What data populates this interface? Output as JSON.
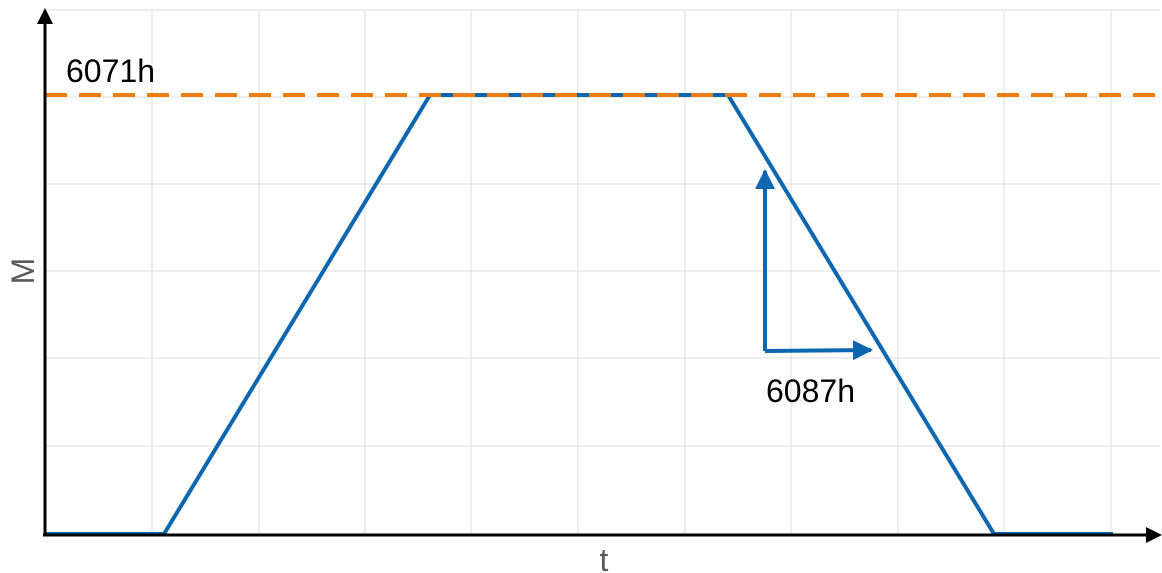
{
  "axes": {
    "x_label": "t",
    "y_label": "M"
  },
  "reference_line": {
    "label": "6071h",
    "color": "#ed7d0f",
    "style": "dashed"
  },
  "profile": {
    "color": "#0d67b0",
    "shape": "trapezoid",
    "phases": [
      "idle",
      "ramp-up",
      "constant",
      "ramp-down",
      "idle"
    ]
  },
  "slope_annotation": {
    "label": "6087h",
    "color": "#0d67b0"
  }
}
